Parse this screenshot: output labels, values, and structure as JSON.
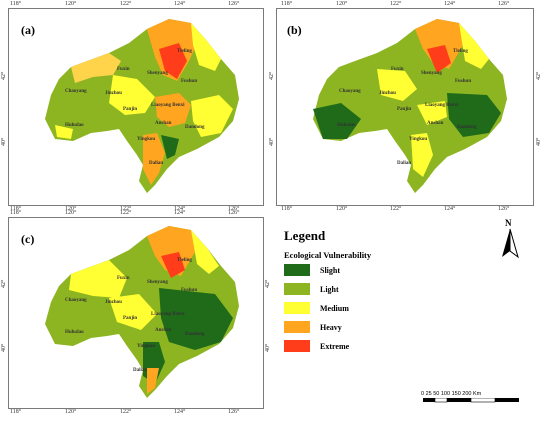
{
  "panels": [
    {
      "letter": "(a)",
      "x_ticks": [
        "118°",
        "120°",
        "122°",
        "124°",
        "126°"
      ],
      "y_ticks": [
        "42°",
        "40°"
      ],
      "top_ticks": [
        "118°",
        "120°",
        "122°",
        "124°",
        "126°"
      ],
      "cities": [
        "Tieling",
        "Fuxin",
        "Shenyang",
        "Fushun",
        "Chaoyang",
        "Jinzhou",
        "Liaoyang Benxi",
        "Panjin",
        "Huludao",
        "Anshan",
        "Dandong",
        "Yingkou",
        "Dalian"
      ]
    },
    {
      "letter": "(b)",
      "x_ticks": [
        "118°",
        "120°",
        "122°",
        "124°",
        "126°"
      ],
      "y_ticks": [
        "42°",
        "40°"
      ],
      "top_ticks": [
        "118°",
        "120°",
        "122°",
        "124°",
        "126°"
      ],
      "cities": [
        "Tieling",
        "Fuxin",
        "Shenyang",
        "Fushun",
        "Chaoyang",
        "Jinzhou",
        "Liaoyang Benxi",
        "Panjin",
        "Huludao",
        "Anshan",
        "Dandong",
        "Yingkou",
        "Dalian"
      ]
    },
    {
      "letter": "(c)",
      "x_ticks": [
        "118°",
        "120°",
        "122°",
        "124°",
        "126°"
      ],
      "y_ticks": [
        "42°",
        "40°"
      ],
      "top_ticks": [
        "118°",
        "120°",
        "122°",
        "124°",
        "126°"
      ],
      "cities": [
        "Tieling",
        "Fuxin",
        "Shenyang",
        "Fushun",
        "Chaoyang",
        "Jinzhou",
        "Liaoyang Benxi",
        "Panjin",
        "Huludao",
        "Anshan",
        "Dandong",
        "Yingkou",
        "Dalian"
      ]
    }
  ],
  "legend": {
    "title": "Legend",
    "subtitle": "Ecological Vulnerability",
    "items": [
      {
        "label": "Slight",
        "color": "#1f6b1a"
      },
      {
        "label": "Light",
        "color": "#8cb521"
      },
      {
        "label": "Medium",
        "color": "#ffff33"
      },
      {
        "label": "Heavy",
        "color": "#ffa51f"
      },
      {
        "label": "Extreme",
        "color": "#ff3d1a"
      }
    ]
  },
  "north_arrow": "N",
  "scale": {
    "labels": "0  25 50    100   150   200",
    "unit": "Km"
  }
}
